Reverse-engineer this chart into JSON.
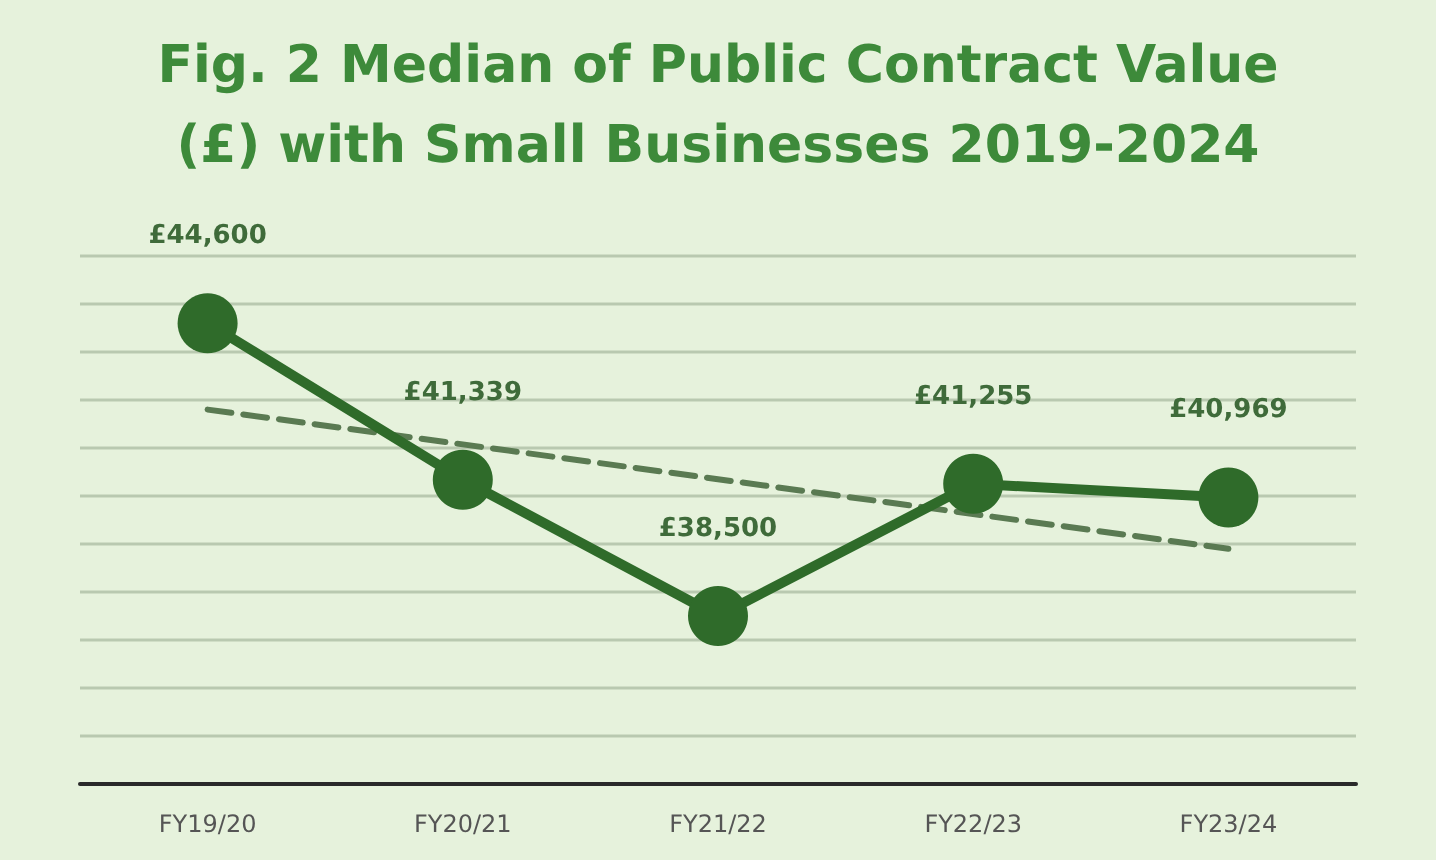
{
  "chart_data": {
    "type": "line",
    "title": "Fig. 2 Median of Public Contract Value\n(£) with Small Businesses 2019-2024",
    "categories": [
      "FY19/20",
      "FY20/21",
      "FY21/22",
      "FY22/23",
      "FY23/24"
    ],
    "series": [
      {
        "color": "#2f6b2a",
        "values": [
          44600,
          41339,
          38500,
          41255,
          40969
        ],
        "value_labels": [
          "£44,600",
          "£41,339",
          "£38,500",
          "£41,255",
          "£40,969"
        ],
        "marker": "circle",
        "line_style": "solid"
      },
      {
        "type": "line",
        "color": "#5a7a52",
        "x": [
          "FY19/20",
          "FY23/24"
        ],
        "values": [
          42800,
          39900
        ],
        "marker": "none",
        "line_style": "dashed"
      }
    ],
    "ylim": [
      35000,
      46000
    ],
    "yticks": [
      {
        "value": 35000,
        "label": null
      },
      {
        "value": 36000,
        "label": null
      },
      {
        "value": 37000,
        "label": null
      },
      {
        "value": 38000,
        "label": null
      },
      {
        "value": 39000,
        "label": null
      },
      {
        "value": 40000,
        "label": null
      },
      {
        "value": 41000,
        "label": null
      },
      {
        "value": 42000,
        "label": null
      },
      {
        "value": 43000,
        "label": null
      },
      {
        "value": 44000,
        "label": null
      },
      {
        "value": 45000,
        "label": null
      },
      {
        "value": 46000,
        "label": null
      }
    ],
    "tick_labels": "x",
    "grid": "y"
  }
}
